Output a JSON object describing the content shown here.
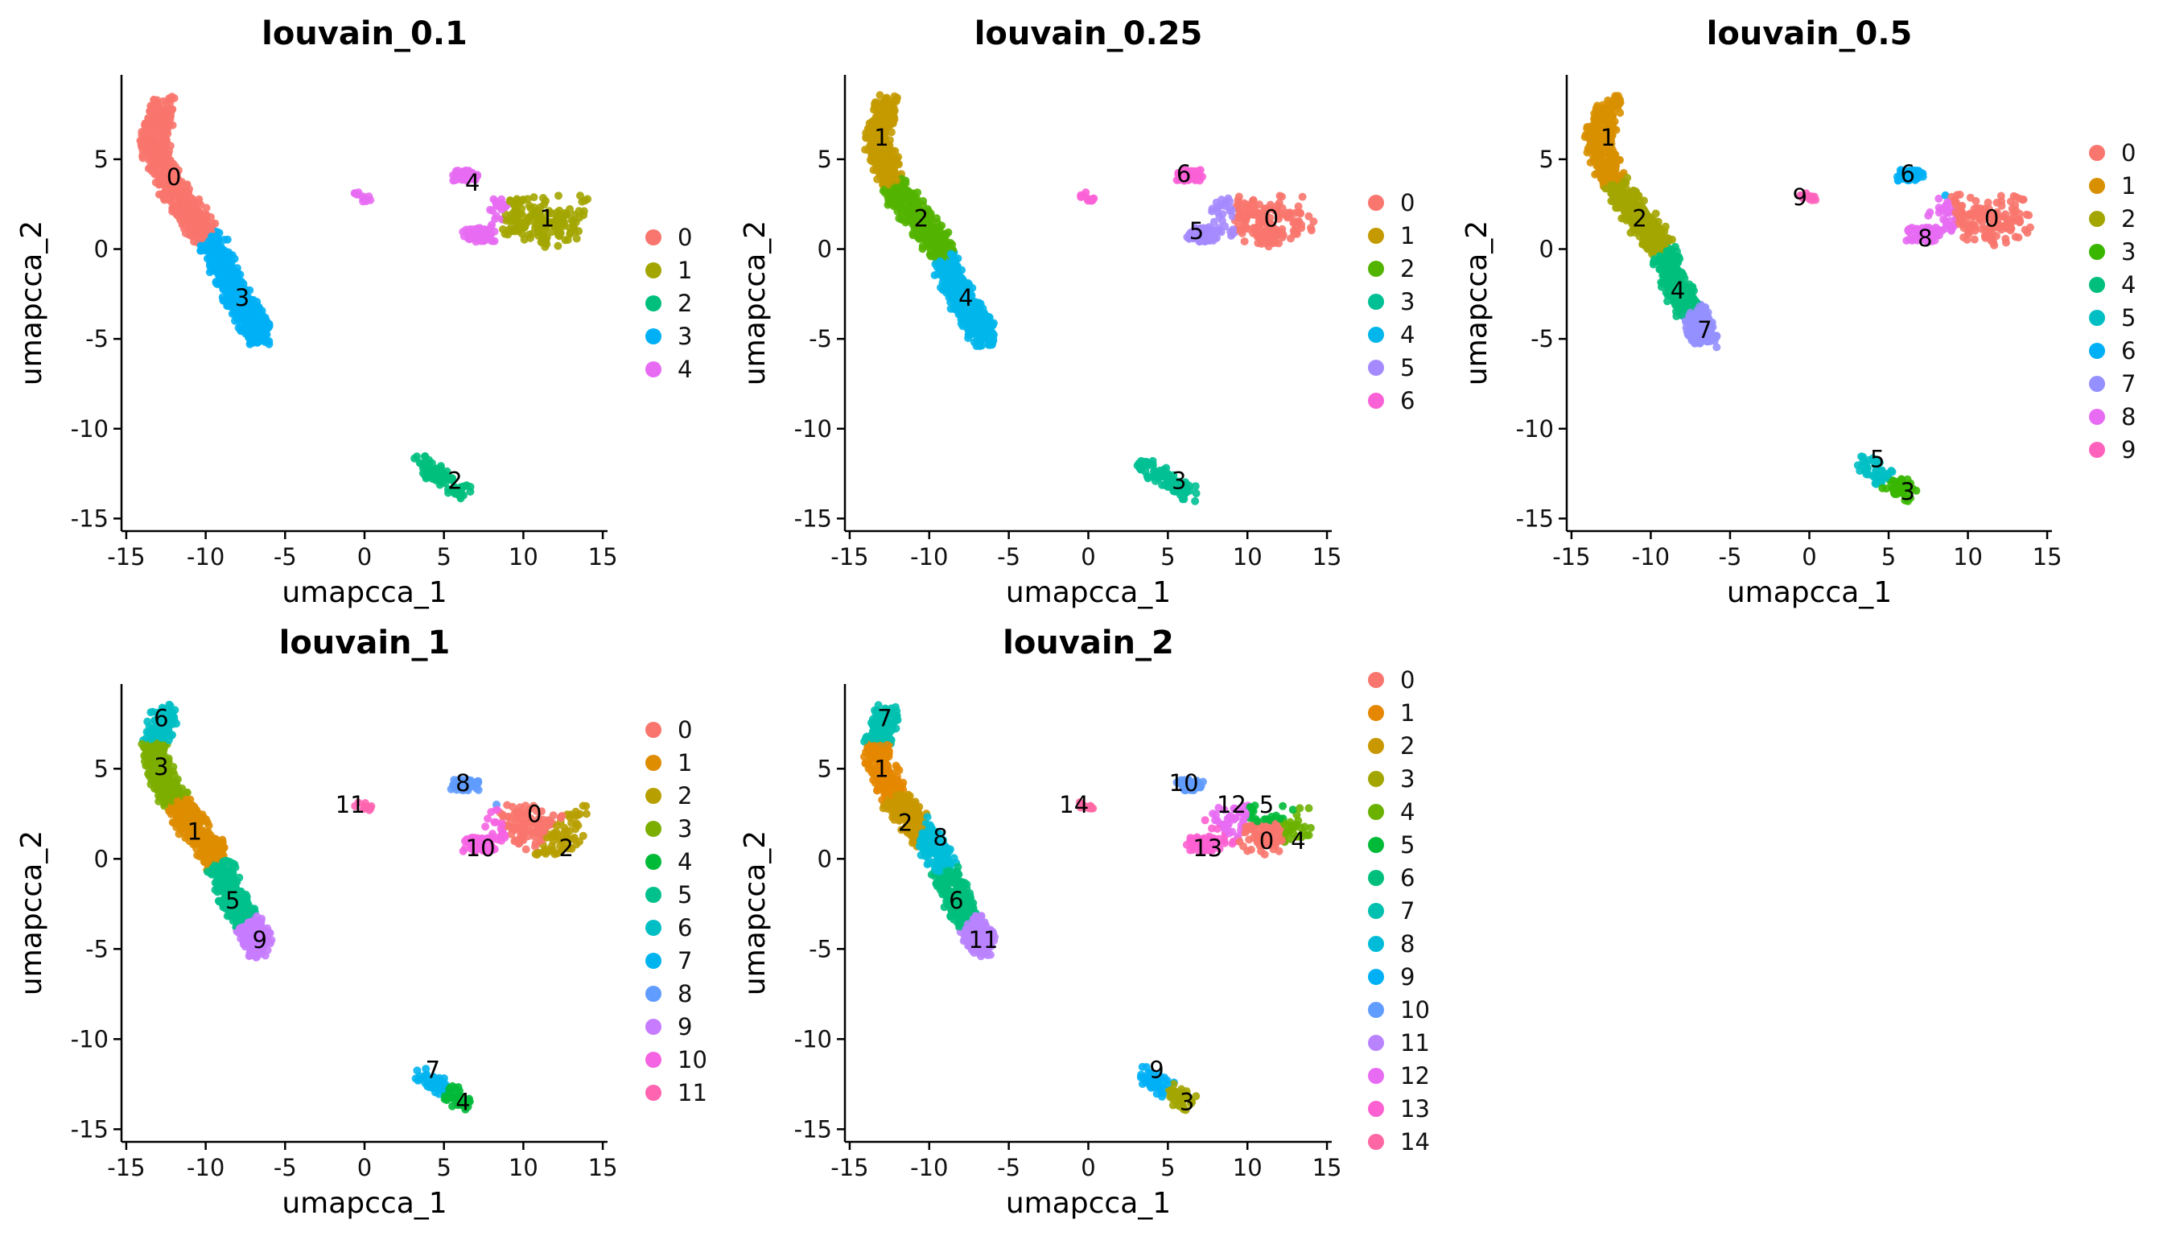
{
  "chart_data": [
    {
      "type": "scatter",
      "title": "louvain_0.1",
      "xlabel": "umapcca_1",
      "ylabel": "umapcca_2",
      "xlim": [
        -15.3,
        15.3
      ],
      "ylim": [
        -15.7,
        9.7
      ],
      "xticks": [
        "-15",
        "-10",
        "-5",
        "0",
        "5",
        "10",
        "15"
      ],
      "yticks": [
        "-15",
        "-10",
        "-5",
        "0",
        "5"
      ],
      "legend": [
        "0",
        "1",
        "2",
        "3",
        "4"
      ],
      "colors": [
        "#F8766D",
        "#A3A500",
        "#00BF7D",
        "#00B0F6",
        "#E76BF3"
      ],
      "clusters": [
        {
          "label": "0",
          "x": -12.0,
          "y": 4.0,
          "color": "#F8766D"
        },
        {
          "label": "1",
          "x": 11.5,
          "y": 1.7,
          "color": "#A3A500"
        },
        {
          "label": "2",
          "x": 5.7,
          "y": -12.9,
          "color": "#00BF7D"
        },
        {
          "label": "3",
          "x": -7.7,
          "y": -2.7,
          "color": "#00B0F6"
        },
        {
          "label": "4",
          "x": 6.8,
          "y": 3.7,
          "color": "#E76BF3"
        }
      ]
    },
    {
      "type": "scatter",
      "title": "louvain_0.25",
      "xlabel": "umapcca_1",
      "ylabel": "umapcca_2",
      "xlim": [
        -15.3,
        15.3
      ],
      "ylim": [
        -15.7,
        9.7
      ],
      "xticks": [
        "-15",
        "-10",
        "-5",
        "0",
        "5",
        "10",
        "15"
      ],
      "yticks": [
        "-15",
        "-10",
        "-5",
        "0",
        "5"
      ],
      "legend": [
        "0",
        "1",
        "2",
        "3",
        "4",
        "5",
        "6"
      ],
      "colors": [
        "#F8766D",
        "#C49A00",
        "#53B400",
        "#00C094",
        "#00B6EB",
        "#A58AFF",
        "#FB61D7"
      ],
      "clusters": [
        {
          "label": "0",
          "x": 11.5,
          "y": 1.7,
          "color": "#F8766D"
        },
        {
          "label": "1",
          "x": -13.0,
          "y": 6.2,
          "color": "#C49A00"
        },
        {
          "label": "2",
          "x": -10.5,
          "y": 1.7,
          "color": "#53B400"
        },
        {
          "label": "3",
          "x": 5.7,
          "y": -12.9,
          "color": "#00C094"
        },
        {
          "label": "4",
          "x": -7.7,
          "y": -2.7,
          "color": "#00B6EB"
        },
        {
          "label": "5",
          "x": 6.8,
          "y": 1.0,
          "color": "#A58AFF"
        },
        {
          "label": "6",
          "x": 6.0,
          "y": 4.2,
          "color": "#FB61D7"
        }
      ]
    },
    {
      "type": "scatter",
      "title": "louvain_0.5",
      "xlabel": "umapcca_1",
      "ylabel": "umapcca_2",
      "xlim": [
        -15.3,
        15.3
      ],
      "ylim": [
        -15.7,
        9.7
      ],
      "xticks": [
        "-15",
        "-10",
        "-5",
        "0",
        "5",
        "10",
        "15"
      ],
      "yticks": [
        "-15",
        "-10",
        "-5",
        "0",
        "5"
      ],
      "legend": [
        "0",
        "1",
        "2",
        "3",
        "4",
        "5",
        "6",
        "7",
        "8",
        "9"
      ],
      "colors": [
        "#F8766D",
        "#D89000",
        "#A3A500",
        "#39B600",
        "#00BF7D",
        "#00BFC4",
        "#00B0F6",
        "#9590FF",
        "#E76BF3",
        "#FF62BC"
      ],
      "clusters": [
        {
          "label": "0",
          "x": 11.5,
          "y": 1.7,
          "color": "#F8766D"
        },
        {
          "label": "1",
          "x": -12.7,
          "y": 6.2,
          "color": "#D89000"
        },
        {
          "label": "2",
          "x": -10.7,
          "y": 1.7,
          "color": "#A3A500"
        },
        {
          "label": "3",
          "x": 6.2,
          "y": -13.5,
          "color": "#39B600"
        },
        {
          "label": "4",
          "x": -8.3,
          "y": -2.3,
          "color": "#00BF7D"
        },
        {
          "label": "5",
          "x": 4.3,
          "y": -11.7,
          "color": "#00BFC4"
        },
        {
          "label": "6",
          "x": 6.2,
          "y": 4.2,
          "color": "#00B0F6"
        },
        {
          "label": "7",
          "x": -6.6,
          "y": -4.5,
          "color": "#9590FF"
        },
        {
          "label": "8",
          "x": 7.3,
          "y": 0.6,
          "color": "#E76BF3"
        },
        {
          "label": "9",
          "x": -0.6,
          "y": 2.9,
          "color": "#FF62BC"
        }
      ]
    },
    {
      "type": "scatter",
      "title": "louvain_1",
      "xlabel": "umapcca_1",
      "ylabel": "umapcca_2",
      "xlim": [
        -15.3,
        15.3
      ],
      "ylim": [
        -15.7,
        9.7
      ],
      "xticks": [
        "-15",
        "-10",
        "-5",
        "0",
        "5",
        "10",
        "15"
      ],
      "yticks": [
        "-15",
        "-10",
        "-5",
        "0",
        "5"
      ],
      "legend": [
        "0",
        "1",
        "2",
        "3",
        "4",
        "5",
        "6",
        "7",
        "8",
        "9",
        "10",
        "11"
      ],
      "colors": [
        "#F8766D",
        "#DE8C00",
        "#B79F00",
        "#7CAE00",
        "#00BA38",
        "#00C08B",
        "#00BFC4",
        "#00B4F0",
        "#619CFF",
        "#C77CFF",
        "#F564E3",
        "#FF64B0"
      ],
      "clusters": [
        {
          "label": "0",
          "x": 10.7,
          "y": 2.5,
          "color": "#F8766D"
        },
        {
          "label": "1",
          "x": -10.7,
          "y": 1.5,
          "color": "#DE8C00"
        },
        {
          "label": "2",
          "x": 12.7,
          "y": 0.6,
          "color": "#B79F00"
        },
        {
          "label": "3",
          "x": -12.8,
          "y": 5.1,
          "color": "#7CAE00"
        },
        {
          "label": "4",
          "x": 6.2,
          "y": -13.5,
          "color": "#00BA38"
        },
        {
          "label": "5",
          "x": -8.3,
          "y": -2.3,
          "color": "#00C08B"
        },
        {
          "label": "6",
          "x": -12.8,
          "y": 7.8,
          "color": "#00BFC4"
        },
        {
          "label": "7",
          "x": 4.3,
          "y": -11.7,
          "color": "#00B4F0"
        },
        {
          "label": "8",
          "x": 6.2,
          "y": 4.2,
          "color": "#619CFF"
        },
        {
          "label": "9",
          "x": -6.6,
          "y": -4.5,
          "color": "#C77CFF"
        },
        {
          "label": "10",
          "x": 7.3,
          "y": 0.6,
          "color": "#F564E3"
        },
        {
          "label": "11",
          "x": -0.9,
          "y": 3.0,
          "color": "#FF64B0"
        }
      ]
    },
    {
      "type": "scatter",
      "title": "louvain_2",
      "xlabel": "umapcca_1",
      "ylabel": "umapcca_2",
      "xlim": [
        -15.3,
        15.3
      ],
      "ylim": [
        -15.7,
        9.7
      ],
      "xticks": [
        "-15",
        "-10",
        "-5",
        "0",
        "5",
        "10",
        "15"
      ],
      "yticks": [
        "-15",
        "-10",
        "-5",
        "0",
        "5"
      ],
      "legend": [
        "0",
        "1",
        "2",
        "3",
        "4",
        "5",
        "6",
        "7",
        "8",
        "9",
        "10",
        "11",
        "12",
        "13",
        "14"
      ],
      "colors": [
        "#F8766D",
        "#E58700",
        "#C99800",
        "#A3A500",
        "#6BB100",
        "#00BA38",
        "#00BF7D",
        "#00C0AF",
        "#00BCD8",
        "#00B0F6",
        "#619CFF",
        "#B983FF",
        "#E76BF3",
        "#FD61D1",
        "#FF67A4"
      ],
      "clusters": [
        {
          "label": "0",
          "x": 11.2,
          "y": 1.0,
          "color": "#F8766D"
        },
        {
          "label": "1",
          "x": -13.0,
          "y": 5.0,
          "color": "#E58700"
        },
        {
          "label": "2",
          "x": -11.5,
          "y": 2.0,
          "color": "#C99800"
        },
        {
          "label": "3",
          "x": 6.2,
          "y": -13.5,
          "color": "#A3A500"
        },
        {
          "label": "4",
          "x": 13.2,
          "y": 1.0,
          "color": "#6BB100"
        },
        {
          "label": "5",
          "x": 11.2,
          "y": 3.0,
          "color": "#00BA38"
        },
        {
          "label": "6",
          "x": -8.3,
          "y": -2.3,
          "color": "#00BF7D"
        },
        {
          "label": "7",
          "x": -12.8,
          "y": 7.8,
          "color": "#00C0AF"
        },
        {
          "label": "8",
          "x": -9.3,
          "y": 1.2,
          "color": "#00BCD8"
        },
        {
          "label": "9",
          "x": 4.3,
          "y": -11.7,
          "color": "#00B0F6"
        },
        {
          "label": "10",
          "x": 6.0,
          "y": 4.2,
          "color": "#619CFF"
        },
        {
          "label": "11",
          "x": -6.6,
          "y": -4.5,
          "color": "#B983FF"
        },
        {
          "label": "12",
          "x": 9.0,
          "y": 3.0,
          "color": "#E76BF3"
        },
        {
          "label": "13",
          "x": 7.5,
          "y": 0.6,
          "color": "#FD61D1"
        },
        {
          "label": "14",
          "x": -0.9,
          "y": 3.0,
          "color": "#FF67A4"
        }
      ]
    }
  ]
}
